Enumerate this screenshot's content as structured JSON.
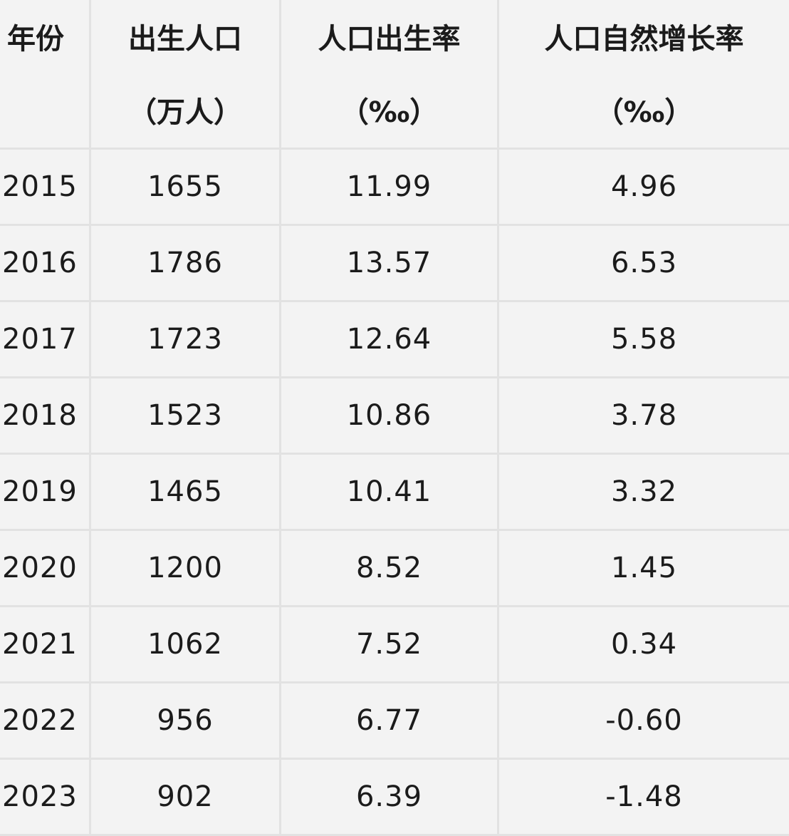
{
  "table": {
    "headers": [
      {
        "line1": "年份",
        "line2": ""
      },
      {
        "line1": "出生人口",
        "line2": "（万人）"
      },
      {
        "line1": "人口出生率",
        "line2": "（‰）"
      },
      {
        "line1": "人口自然增长率",
        "line2": "（‰）"
      }
    ],
    "rows": [
      {
        "year": "2015",
        "births": "1655",
        "birth_rate": "11.99",
        "growth_rate": "4.96"
      },
      {
        "year": "2016",
        "births": "1786",
        "birth_rate": "13.57",
        "growth_rate": "6.53"
      },
      {
        "year": "2017",
        "births": "1723",
        "birth_rate": "12.64",
        "growth_rate": "5.58"
      },
      {
        "year": "2018",
        "births": "1523",
        "birth_rate": "10.86",
        "growth_rate": "3.78"
      },
      {
        "year": "2019",
        "births": "1465",
        "birth_rate": "10.41",
        "growth_rate": "3.32"
      },
      {
        "year": "2020",
        "births": "1200",
        "birth_rate": "8.52",
        "growth_rate": "1.45"
      },
      {
        "year": "2021",
        "births": "1062",
        "birth_rate": "7.52",
        "growth_rate": "0.34"
      },
      {
        "year": "2022",
        "births": "956",
        "birth_rate": "6.77",
        "growth_rate": "-0.60"
      },
      {
        "year": "2023",
        "births": "902",
        "birth_rate": "6.39",
        "growth_rate": "-1.48"
      }
    ]
  },
  "colors": {
    "background": "#f3f3f3",
    "grid": "#e2e2e2",
    "text": "#1b1b1b"
  }
}
